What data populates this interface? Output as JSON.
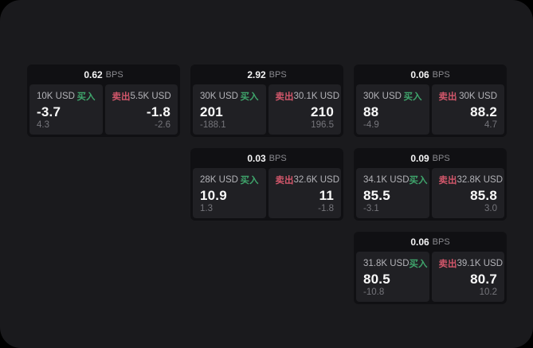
{
  "labels": {
    "bps_unit": "BPS",
    "buy": "买入",
    "sell": "卖出"
  },
  "colors": {
    "outer_background": "#000000",
    "screen_background": "#1a1a1d",
    "card_background": "#101013",
    "panel_background": "#202024",
    "buy_accent": "#3fa56c",
    "sell_accent": "#d1566a",
    "price_text": "#fafafa",
    "label_text": "#b3b3b8",
    "muted_text": "#75757b"
  },
  "cards": [
    {
      "bps": "0.62",
      "col": 1,
      "row": 1,
      "buy": {
        "amount": "10K USD",
        "price": "-3.7",
        "sub": "4.3"
      },
      "sell": {
        "amount": "5.5K USD",
        "price": "-1.8",
        "sub": "-2.6"
      }
    },
    {
      "bps": "2.92",
      "col": 2,
      "row": 1,
      "buy": {
        "amount": "30K USD",
        "price": "201",
        "sub": "-188.1"
      },
      "sell": {
        "amount": "30.1K USD",
        "price": "210",
        "sub": "196.5"
      }
    },
    {
      "bps": "0.06",
      "col": 3,
      "row": 1,
      "buy": {
        "amount": "30K USD",
        "price": "88",
        "sub": "-4.9"
      },
      "sell": {
        "amount": "30K USD",
        "price": "88.2",
        "sub": "4.7"
      }
    },
    {
      "bps": "0.03",
      "col": 2,
      "row": 2,
      "buy": {
        "amount": "28K USD",
        "price": "10.9",
        "sub": "1.3"
      },
      "sell": {
        "amount": "32.6K USD",
        "price": "11",
        "sub": "-1.8"
      }
    },
    {
      "bps": "0.09",
      "col": 3,
      "row": 2,
      "buy": {
        "amount": "34.1K USD",
        "price": "85.5",
        "sub": "-3.1"
      },
      "sell": {
        "amount": "32.8K USD",
        "price": "85.8",
        "sub": "3.0"
      }
    },
    {
      "bps": "0.06",
      "col": 3,
      "row": 3,
      "buy": {
        "amount": "31.8K USD",
        "price": "80.5",
        "sub": "-10.8"
      },
      "sell": {
        "amount": "39.1K USD",
        "price": "80.7",
        "sub": "10.2"
      }
    }
  ]
}
